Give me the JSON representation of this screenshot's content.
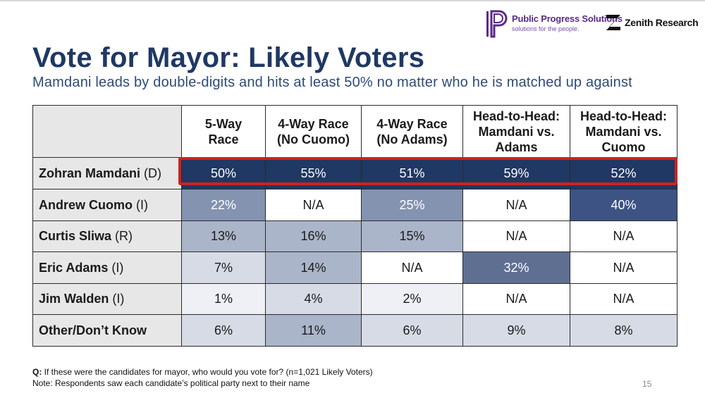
{
  "logos": {
    "pps_name": "Public Progress Solutions",
    "pps_tagline": "solutions for the people.",
    "zenith_name": "Zenith Research"
  },
  "title": "Vote for Mayor: Likely Voters",
  "subtitle": "Mamdani leads by double-digits and hits at least 50% no matter who he is matched up against",
  "chart_data": {
    "type": "table",
    "title": "Vote for Mayor: Likely Voters",
    "columns": [
      [
        "5-Way",
        "Race"
      ],
      [
        "4-Way Race",
        "(No Cuomo)"
      ],
      [
        "4-Way Race",
        "(No Adams)"
      ],
      [
        "Head-to-Head:",
        "Mamdani vs.",
        "Adams"
      ],
      [
        "Head-to-Head:",
        "Mamdani vs.",
        "Cuomo"
      ]
    ],
    "rows": [
      {
        "name": "Zohran Mamdani",
        "party": "(D)",
        "values": [
          "50%",
          "55%",
          "51%",
          "59%",
          "52%"
        ],
        "fills": [
          "#1f3864",
          "#1f3864",
          "#1f3864",
          "#1f3864",
          "#1f3864"
        ]
      },
      {
        "name": "Andrew Cuomo",
        "party": "(I)",
        "values": [
          "22%",
          "N/A",
          "25%",
          "N/A",
          "40%"
        ],
        "fills": [
          "#8393b0",
          "#ffffff",
          "#8393b0",
          "#ffffff",
          "#3d5384"
        ]
      },
      {
        "name": "Curtis Sliwa",
        "party": "(R)",
        "values": [
          "13%",
          "16%",
          "15%",
          "N/A",
          "N/A"
        ],
        "fills": [
          "#abb5c9",
          "#abb5c9",
          "#abb5c9",
          "#ffffff",
          "#ffffff"
        ]
      },
      {
        "name": "Eric Adams",
        "party": "(I)",
        "values": [
          "7%",
          "14%",
          "N/A",
          "32%",
          "N/A"
        ],
        "fills": [
          "#d6dbe5",
          "#abb5c9",
          "#ffffff",
          "#5f6f92",
          "#ffffff"
        ]
      },
      {
        "name": "Jim Walden",
        "party": "(I)",
        "values": [
          "1%",
          "4%",
          "2%",
          "N/A",
          "N/A"
        ],
        "fills": [
          "#eef0f5",
          "#d6dbe5",
          "#eef0f5",
          "#ffffff",
          "#ffffff"
        ]
      },
      {
        "name": "Other/Don’t Know",
        "party": "",
        "values": [
          "6%",
          "11%",
          "6%",
          "9%",
          "8%"
        ],
        "fills": [
          "#d6dbe5",
          "#abb5c9",
          "#d6dbe5",
          "#d6dbe5",
          "#d6dbe5"
        ]
      }
    ],
    "highlighted_row": "Zohran Mamdani"
  },
  "footer": {
    "q_label": "Q:",
    "question": " If these were the candidates for mayor, who would you vote for? (n=1,021 Likely Voters)",
    "note": "Note: Respondents saw each candidate’s political party next to their name"
  },
  "page_number": "15"
}
